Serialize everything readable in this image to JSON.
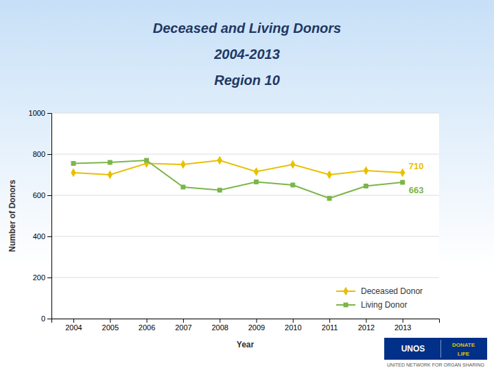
{
  "chart_data": {
    "type": "line",
    "title": "Deceased and Living Donors",
    "subtitle": [
      "2004-2013",
      "Region 10"
    ],
    "x_label": "Year",
    "y_label": "Number of Donors",
    "x": [
      2004,
      2005,
      2006,
      2007,
      2008,
      2009,
      2010,
      2011,
      2012,
      2013
    ],
    "series": [
      {
        "name": "Deceased Donor",
        "color": "#E8C000",
        "marker": "diamond",
        "values": [
          710,
          700,
          755,
          750,
          770,
          715,
          750,
          700,
          720,
          710
        ]
      },
      {
        "name": "Living Donor",
        "color": "#7AB648",
        "marker": "square",
        "values": [
          755,
          760,
          770,
          640,
          625,
          665,
          650,
          585,
          645,
          663
        ]
      }
    ],
    "xlim": [
      2003.4,
      2014.0
    ],
    "xticks": [
      2004,
      2005,
      2006,
      2007,
      2008,
      2009,
      2010,
      2011,
      2012,
      2013
    ],
    "ylim": [
      0,
      1000
    ],
    "yticks": [
      0,
      200,
      400,
      600,
      800,
      1000
    ],
    "grid": true,
    "legend": "lower right",
    "annotations": [
      {
        "text": "710",
        "x": 2013,
        "y": 710
      },
      {
        "text": "663",
        "x": 2013,
        "y": 663
      },
      {
        "text": "UNOS"
      },
      {
        "text": "DONATE"
      },
      {
        "text": "LIFE"
      },
      {
        "text": "UNITED NETWORK FOR ORGAN SHARING"
      }
    ]
  }
}
